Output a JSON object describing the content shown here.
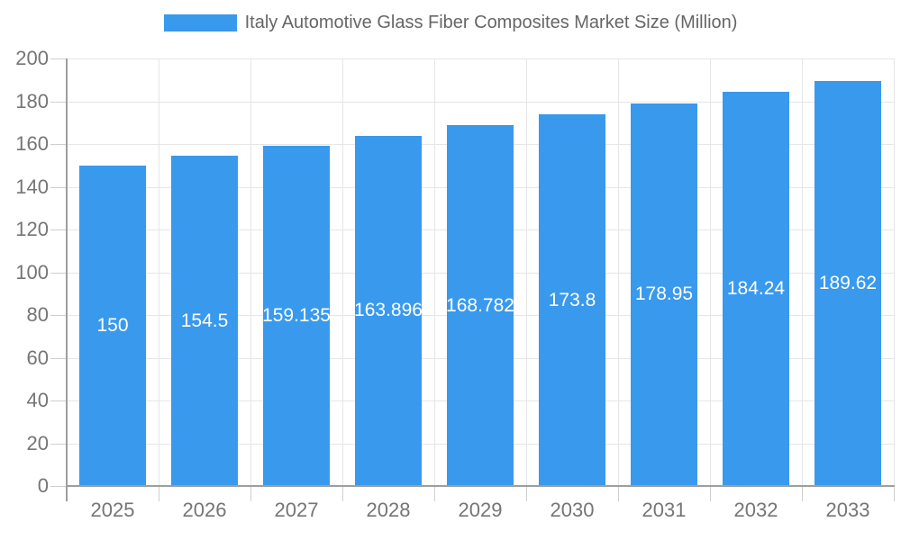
{
  "legend": {
    "label": "Italy Automotive Glass Fiber Composites Market Size (Million)"
  },
  "chart_data": {
    "type": "bar",
    "title": "Italy Automotive Glass Fiber Composites Market Size (Million)",
    "categories": [
      "2025",
      "2026",
      "2027",
      "2028",
      "2029",
      "2030",
      "2031",
      "2032",
      "2033"
    ],
    "values": [
      150,
      154.5,
      159.135,
      163.896,
      168.782,
      173.8,
      178.95,
      184.24,
      189.62
    ],
    "value_labels": [
      "150",
      "154.5",
      "159.135",
      "163.896",
      "168.782",
      "173.8",
      "178.95",
      "184.24",
      "189.62"
    ],
    "xlabel": "",
    "ylabel": "",
    "ylim": [
      0,
      200
    ],
    "ytick_step": 20,
    "yticks": [
      0,
      20,
      40,
      60,
      80,
      100,
      120,
      140,
      160,
      180,
      200
    ],
    "grid": true,
    "legend_position": "top",
    "bar_labels_position": "center-inside",
    "colors": {
      "bar": "#3999ED",
      "grid": "#E6E6E6",
      "tick": "#CFCFCF",
      "axis": "#9E9E9E",
      "axis_text": "#757575",
      "legend_text": "#666666",
      "bar_label_text": "#FFFFFF"
    }
  }
}
